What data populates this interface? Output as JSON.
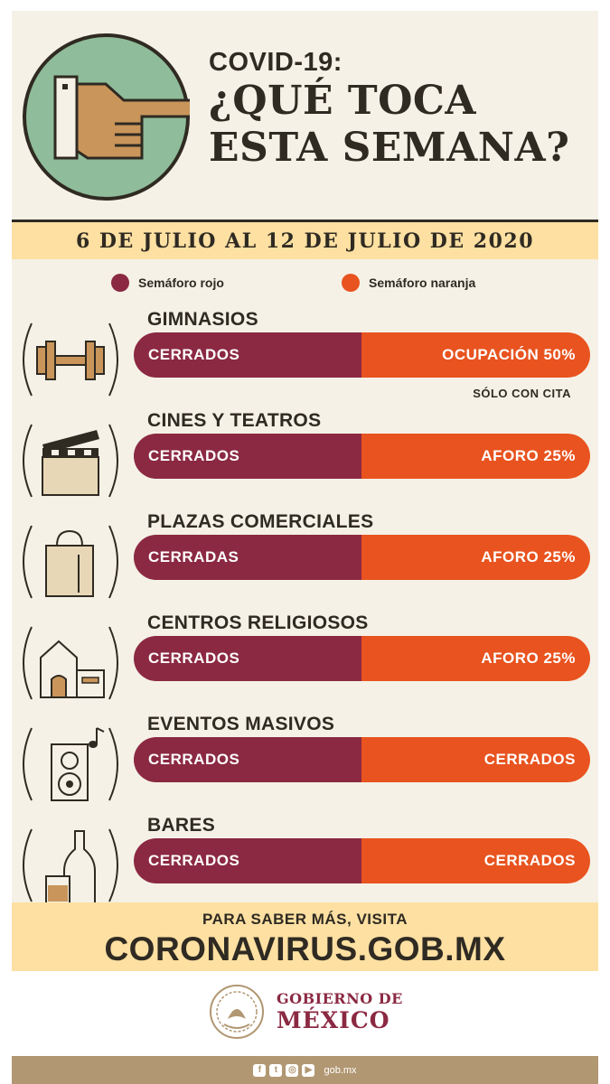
{
  "hero": {
    "line1": "COVID-19:",
    "line2": "¿QUÉ TOCA",
    "line3": "ESTA SEMANA?"
  },
  "date_range": "6 DE JULIO AL 12 DE JULIO DE 2020",
  "legend": {
    "red_label": "Semáforo rojo",
    "orange_label": "Semáforo naranja"
  },
  "colors": {
    "red": "#8b2942",
    "orange": "#e8531f",
    "banner": "#fde0a2",
    "background": "#f5f1e6"
  },
  "categories": [
    {
      "title": "GIMNASIOS",
      "red": "CERRADOS",
      "orange": "OCUPACIÓN 50%",
      "note": "SÓLO CON CITA",
      "icon": "dumbbell-icon"
    },
    {
      "title": "CINES Y TEATROS",
      "red": "CERRADOS",
      "orange": "AFORO 25%",
      "icon": "clapperboard-icon"
    },
    {
      "title": "PLAZAS COMERCIALES",
      "red": "CERRADAS",
      "orange": "AFORO 25%",
      "icon": "shopping-bag-icon"
    },
    {
      "title": "CENTROS RELIGIOSOS",
      "red": "CERRADOS",
      "orange": "AFORO 25%",
      "icon": "church-icon"
    },
    {
      "title": "EVENTOS MASIVOS",
      "red": "CERRADOS",
      "orange": "CERRADOS",
      "icon": "speaker-icon"
    },
    {
      "title": "BARES",
      "red": "CERRADOS",
      "orange": "CERRADOS",
      "icon": "bottle-icon"
    }
  ],
  "footer": {
    "small": "PARA SABER MÁS, VISITA",
    "big": "CORONAVIRUS.GOB.MX"
  },
  "government": {
    "line1": "GOBIERNO DE",
    "line2": "MÉXICO"
  },
  "bottom_bar": {
    "social_icons": [
      "facebook-icon",
      "twitter-icon",
      "instagram-icon",
      "youtube-icon"
    ],
    "site": "gob.mx"
  }
}
